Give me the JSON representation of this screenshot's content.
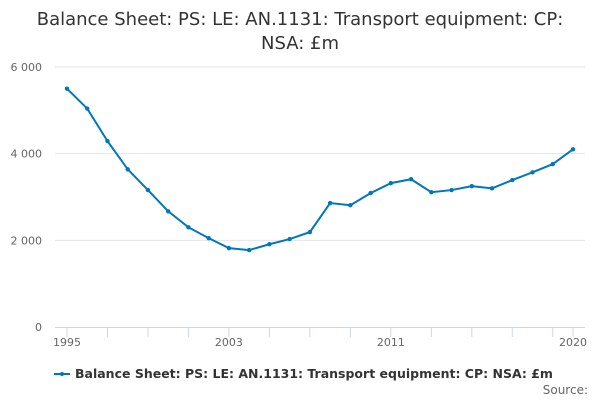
{
  "chart_data": {
    "type": "line",
    "title": "Balance Sheet: PS: LE: AN.1131: Transport equipment: CP: NSA: £m",
    "xlabel": "",
    "ylabel": "",
    "x": [
      1995,
      1996,
      1997,
      1998,
      1999,
      2000,
      2001,
      2002,
      2003,
      2004,
      2005,
      2006,
      2007,
      2008,
      2009,
      2010,
      2011,
      2012,
      2013,
      2014,
      2015,
      2016,
      2017,
      2018,
      2019,
      2020
    ],
    "series": [
      {
        "name": "Balance Sheet: PS: LE: AN.1131: Transport equipment: CP: NSA: £m",
        "color": "#0077bb",
        "values": [
          5500,
          5040,
          4290,
          3640,
          3160,
          2670,
          2300,
          2050,
          1820,
          1775,
          1910,
          2030,
          2190,
          2860,
          2810,
          3090,
          3320,
          3410,
          3110,
          3160,
          3250,
          3200,
          3390,
          3570,
          3760,
          4100
        ]
      }
    ],
    "ylim": [
      0,
      6000
    ],
    "yticks": [
      0,
      2000,
      4000,
      6000
    ],
    "ytick_labels": [
      "0",
      "2 000",
      "4 000",
      "6 000"
    ],
    "xtick_labels": [
      "1995",
      "2003",
      "2011",
      "2020"
    ],
    "xtick_label_values": [
      1995,
      2003,
      2011,
      2020
    ],
    "grid": true,
    "legend": "bottom"
  },
  "source_label": "Source:"
}
